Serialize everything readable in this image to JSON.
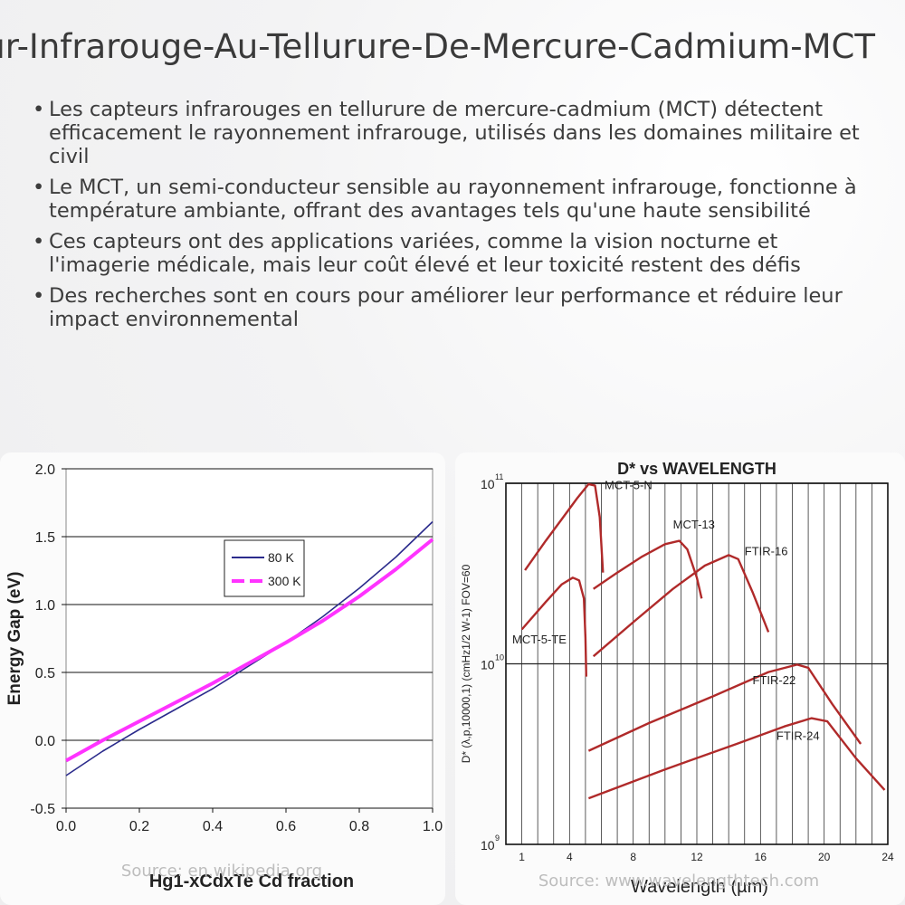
{
  "header": {
    "title": "Capteur-Infrarouge-Au-Tellurure-De-Mercure-Cadmium-MCT"
  },
  "bullets": [
    "Les capteurs infrarouges en tellurure de mercure-cadmium (MCT) détectent efficacement le rayonnement infrarouge, utilisés dans les domaines militaire et civil",
    "Le MCT, un semi-conducteur sensible au rayonnement infrarouge, fonctionne à température ambiante, offrant des avantages tels qu'une haute sensibilité",
    "Ces capteurs ont des applications variées, comme la vision nocturne et l'imagerie médicale, mais leur coût élevé et leur toxicité restent des défis",
    "Des recherches sont en cours pour améliorer leur performance et réduire leur impact environnemental"
  ],
  "chart_data": [
    {
      "type": "line",
      "title": "",
      "xlabel": "Hg1-xCdxTe Cd fraction",
      "ylabel": "Energy Gap (eV)",
      "xlim": [
        0,
        1
      ],
      "ylim": [
        -0.5,
        2.0
      ],
      "xticks": [
        "0.0",
        "0.2",
        "0.4",
        "0.6",
        "0.8",
        "1.0"
      ],
      "yticks": [
        "-0.5",
        "0.0",
        "0.5",
        "1.0",
        "1.5",
        "2.0"
      ],
      "grid": "horizontal",
      "legend_position": "center-right",
      "source": "Source: en.wikipedia.org",
      "series": [
        {
          "name": "80 K",
          "color": "#2b2b8c",
          "x": [
            0,
            0.1,
            0.2,
            0.3,
            0.4,
            0.5,
            0.6,
            0.7,
            0.8,
            0.9,
            1.0
          ],
          "y": [
            -0.26,
            -0.08,
            0.08,
            0.23,
            0.38,
            0.55,
            0.72,
            0.91,
            1.12,
            1.35,
            1.61
          ]
        },
        {
          "name": "300 K",
          "color": "#ff33ff",
          "x": [
            0,
            0.1,
            0.2,
            0.3,
            0.4,
            0.5,
            0.6,
            0.7,
            0.8,
            0.9,
            1.0
          ],
          "y": [
            -0.15,
            0.0,
            0.14,
            0.28,
            0.42,
            0.57,
            0.72,
            0.88,
            1.06,
            1.26,
            1.48
          ]
        }
      ]
    },
    {
      "type": "line",
      "title": "D* vs WAVELENGTH",
      "xlabel": "Wavelength (µm)",
      "ylabel": "D* (λ,p,10000,1)  (cmHz1/2 W-1)  FOV=60",
      "xlim": [
        0,
        24
      ],
      "ylim_log10": [
        9,
        11
      ],
      "xticks": [
        "4",
        "8",
        "12",
        "16",
        "20",
        "24"
      ],
      "xtick_minor_label": "1",
      "yticks": [
        "10",
        "10",
        "10"
      ],
      "ytick_exponents": [
        "9",
        "10",
        "11"
      ],
      "grid": "both",
      "source": "Source: www.wavelengthtech.com",
      "series": [
        {
          "name": "MCT-5-N",
          "color": "#b02a2a",
          "x": [
            1.2,
            2.5,
            3.5,
            4.5,
            5.2,
            5.6,
            5.9,
            6.1
          ],
          "y": [
            33000000000.0,
            48000000000.0,
            63000000000.0,
            83000000000.0,
            99000000000.0,
            97000000000.0,
            65000000000.0,
            32000000000.0
          ]
        },
        {
          "name": "MCT-13",
          "color": "#b02a2a",
          "x": [
            5.5,
            7.0,
            8.5,
            10.0,
            10.9,
            11.4,
            12.0,
            12.3
          ],
          "y": [
            26000000000.0,
            32000000000.0,
            39000000000.0,
            46000000000.0,
            48000000000.0,
            43000000000.0,
            30000000000.0,
            23000000000.0
          ]
        },
        {
          "name": "FTIR-16",
          "color": "#b02a2a",
          "x": [
            5.5,
            8.0,
            10.5,
            12.5,
            14.0,
            14.6,
            15.5,
            16.5
          ],
          "y": [
            11000000000.0,
            17000000000.0,
            26000000000.0,
            35000000000.0,
            40000000000.0,
            38000000000.0,
            25000000000.0,
            15000000000.0
          ]
        },
        {
          "name": "MCT-5-TE",
          "color": "#b02a2a",
          "x": [
            1.0,
            2.5,
            3.5,
            4.2,
            4.6,
            4.9,
            5.0,
            5.05
          ],
          "y": [
            15500000000.0,
            22000000000.0,
            27500000000.0,
            30000000000.0,
            29000000000.0,
            23000000000.0,
            14000000000.0,
            8500000000.0
          ]
        },
        {
          "name": "FTIR-22",
          "color": "#b02a2a",
          "x": [
            5.2,
            9.0,
            13.0,
            16.5,
            18.3,
            19.0,
            20.5,
            22.3
          ],
          "y": [
            3300000000.0,
            4700000000.0,
            6600000000.0,
            9000000000.0,
            9900000000.0,
            9500000000.0,
            6000000000.0,
            3600000000.0
          ]
        },
        {
          "name": "FTIR-24",
          "color": "#b02a2a",
          "x": [
            5.2,
            10.0,
            14.5,
            17.5,
            19.2,
            20.2,
            22.0,
            23.8
          ],
          "y": [
            1800000000.0,
            2600000000.0,
            3600000000.0,
            4500000000.0,
            5000000000.0,
            4800000000.0,
            3000000000.0,
            2000000000.0
          ]
        }
      ]
    }
  ]
}
